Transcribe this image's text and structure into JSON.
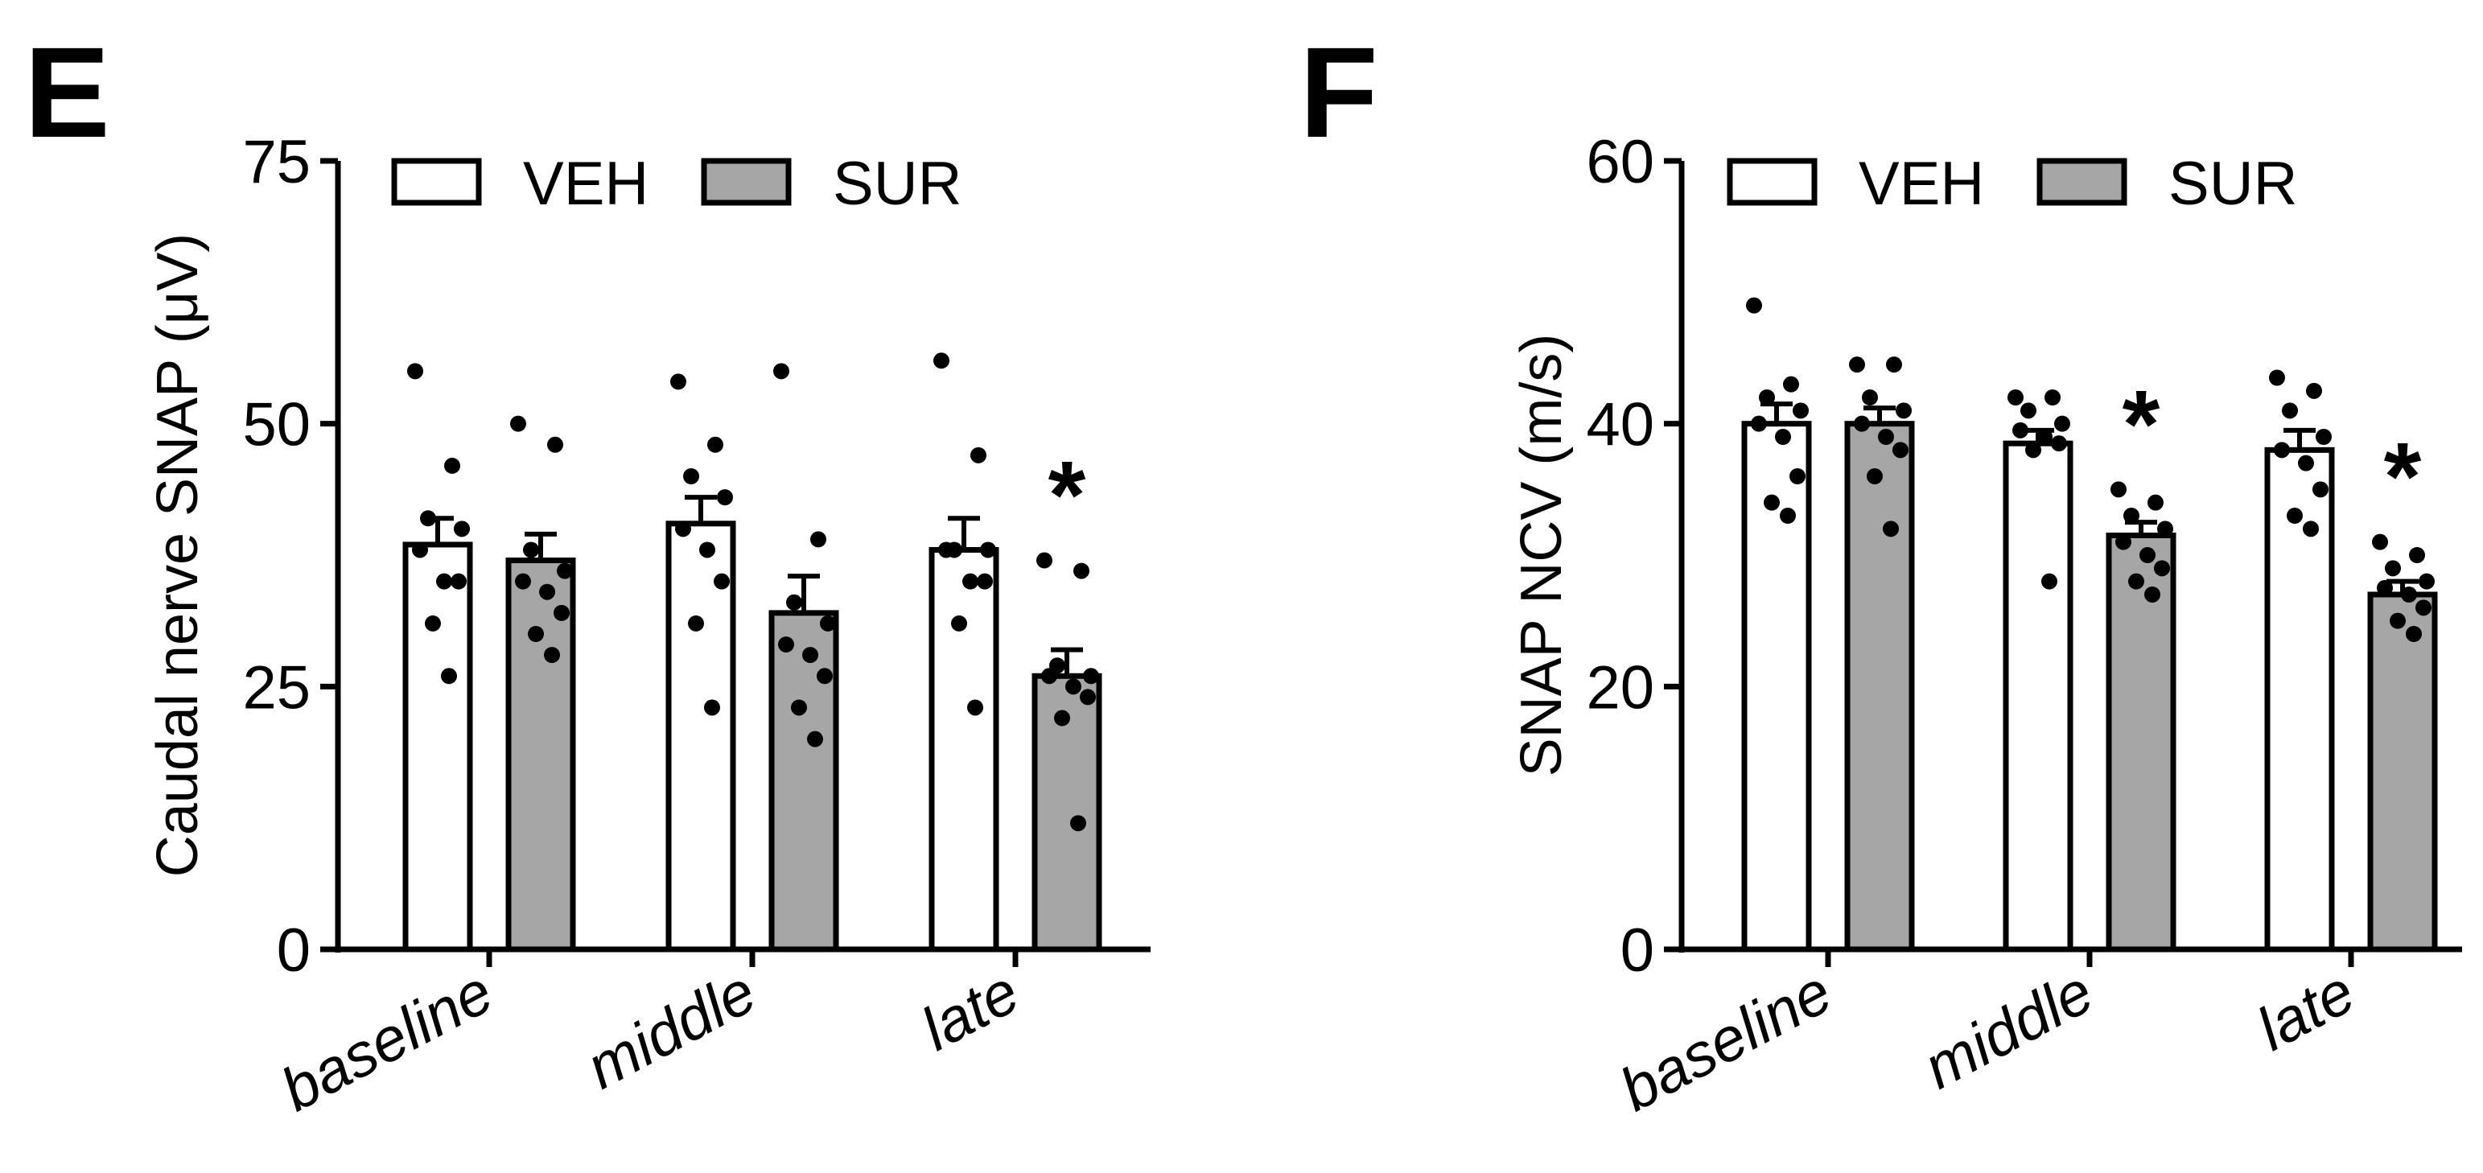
{
  "colors": {
    "veh_fill": "#ffffff",
    "sur_fill": "#a6a6a6",
    "stroke": "#000000",
    "dot": "#000000"
  },
  "chart_data": [
    {
      "panel": "E",
      "type": "bar",
      "ylabel": "Caudal nerve SNAP (μV)",
      "ylim": [
        0,
        75
      ],
      "yticks": [
        "0",
        "25",
        "50",
        "75"
      ],
      "categories": [
        "baseline",
        "middle",
        "late"
      ],
      "legend": "top-left",
      "series": [
        {
          "name": "VEH",
          "values": [
            38.5,
            40.5,
            38
          ],
          "sem": [
            2.5,
            2.5,
            3
          ],
          "points": [
            [
              55,
              46,
              41,
              40,
              38,
              35,
              35,
              31,
              26
            ],
            [
              54,
              48,
              45,
              43,
              40,
              38,
              35,
              31,
              23
            ],
            [
              56,
              47,
              38,
              38,
              38,
              35,
              35,
              31,
              23
            ]
          ]
        },
        {
          "name": "SUR",
          "values": [
            37,
            32,
            26
          ],
          "sem": [
            2.5,
            3.5,
            2.5
          ],
          "points": [
            [
              50,
              48,
              38,
              36,
              35,
              34,
              32,
              30,
              28
            ],
            [
              55,
              39,
              33,
              31,
              29,
              28,
              26,
              23,
              20
            ],
            [
              37,
              36,
              27,
              26,
              26,
              25,
              24,
              22,
              12
            ]
          ]
        }
      ],
      "significance": [
        "",
        "",
        "*"
      ]
    },
    {
      "panel": "F",
      "type": "bar",
      "ylabel": "SNAP NCV (m/s)",
      "ylim": [
        0,
        60
      ],
      "yticks": [
        "0",
        "20",
        "40",
        "60"
      ],
      "categories": [
        "baseline",
        "middle",
        "late"
      ],
      "legend": "top-left",
      "series": [
        {
          "name": "VEH",
          "values": [
            40,
            38.5,
            38
          ],
          "sem": [
            1.5,
            1,
            1.5
          ],
          "points": [
            [
              49,
              43,
              42,
              41,
              40,
              39,
              36,
              34,
              33
            ],
            [
              42,
              42,
              41,
              40,
              39.5,
              39,
              38.5,
              38,
              28
            ],
            [
              43.5,
              42.5,
              41,
              39,
              38,
              37,
              35,
              33,
              32
            ]
          ]
        },
        {
          "name": "SUR",
          "values": [
            40,
            31.5,
            27
          ],
          "sem": [
            1.2,
            1,
            1
          ],
          "points": [
            [
              44.5,
              44.5,
              42,
              41,
              40,
              39,
              38,
              36,
              32
            ],
            [
              35,
              34,
              33,
              32,
              31,
              30,
              29,
              28,
              27
            ],
            [
              31,
              30,
              29,
              28,
              27.5,
              27,
              26,
              25,
              24
            ]
          ]
        }
      ],
      "significance": [
        "",
        "*",
        "*"
      ]
    }
  ]
}
